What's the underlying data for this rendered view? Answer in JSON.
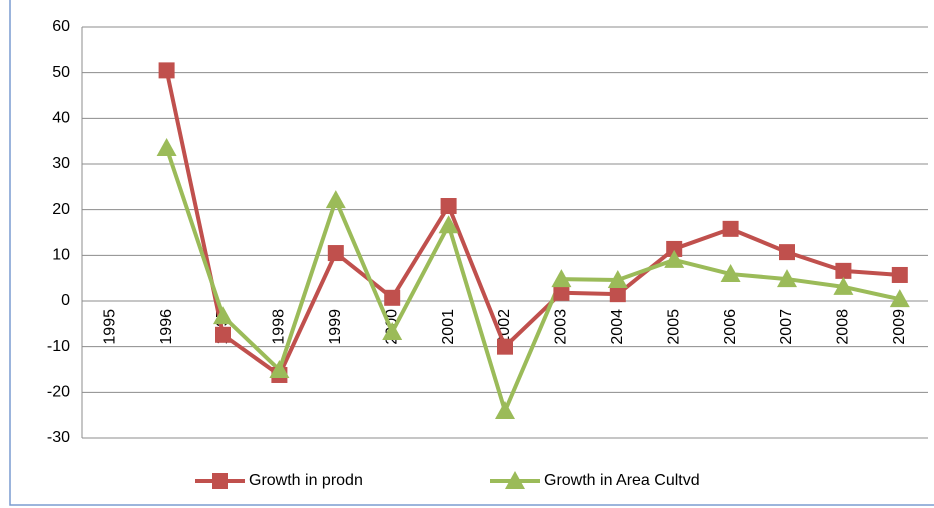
{
  "chart_data": {
    "type": "line",
    "categories": [
      "1995",
      "1996",
      "1997",
      "1998",
      "1999",
      "2000",
      "2001",
      "2002",
      "2003",
      "2004",
      "2005",
      "2006",
      "2007",
      "2008",
      "2009"
    ],
    "series": [
      {
        "name": "Growth in prodn",
        "color": "#c0504d",
        "marker": "square",
        "values": [
          null,
          50.5,
          -7.4,
          -16.2,
          10.5,
          0.7,
          20.8,
          -10,
          1.8,
          1.5,
          11.4,
          15.8,
          10.7,
          6.6,
          5.7
        ]
      },
      {
        "name": "Growth in Area Cultvd",
        "color": "#9bbb59",
        "marker": "triangle",
        "values": [
          null,
          33.5,
          -3.3,
          -15.1,
          22.1,
          -6.8,
          16.6,
          -24.1,
          4.8,
          4.6,
          9.0,
          5.9,
          4.8,
          3.1,
          0.4
        ]
      }
    ],
    "ylim": [
      -30,
      60
    ],
    "yticks": [
      -30,
      -20,
      -10,
      0,
      10,
      20,
      30,
      40,
      50,
      60
    ],
    "grid": true,
    "legend": "bottom"
  }
}
